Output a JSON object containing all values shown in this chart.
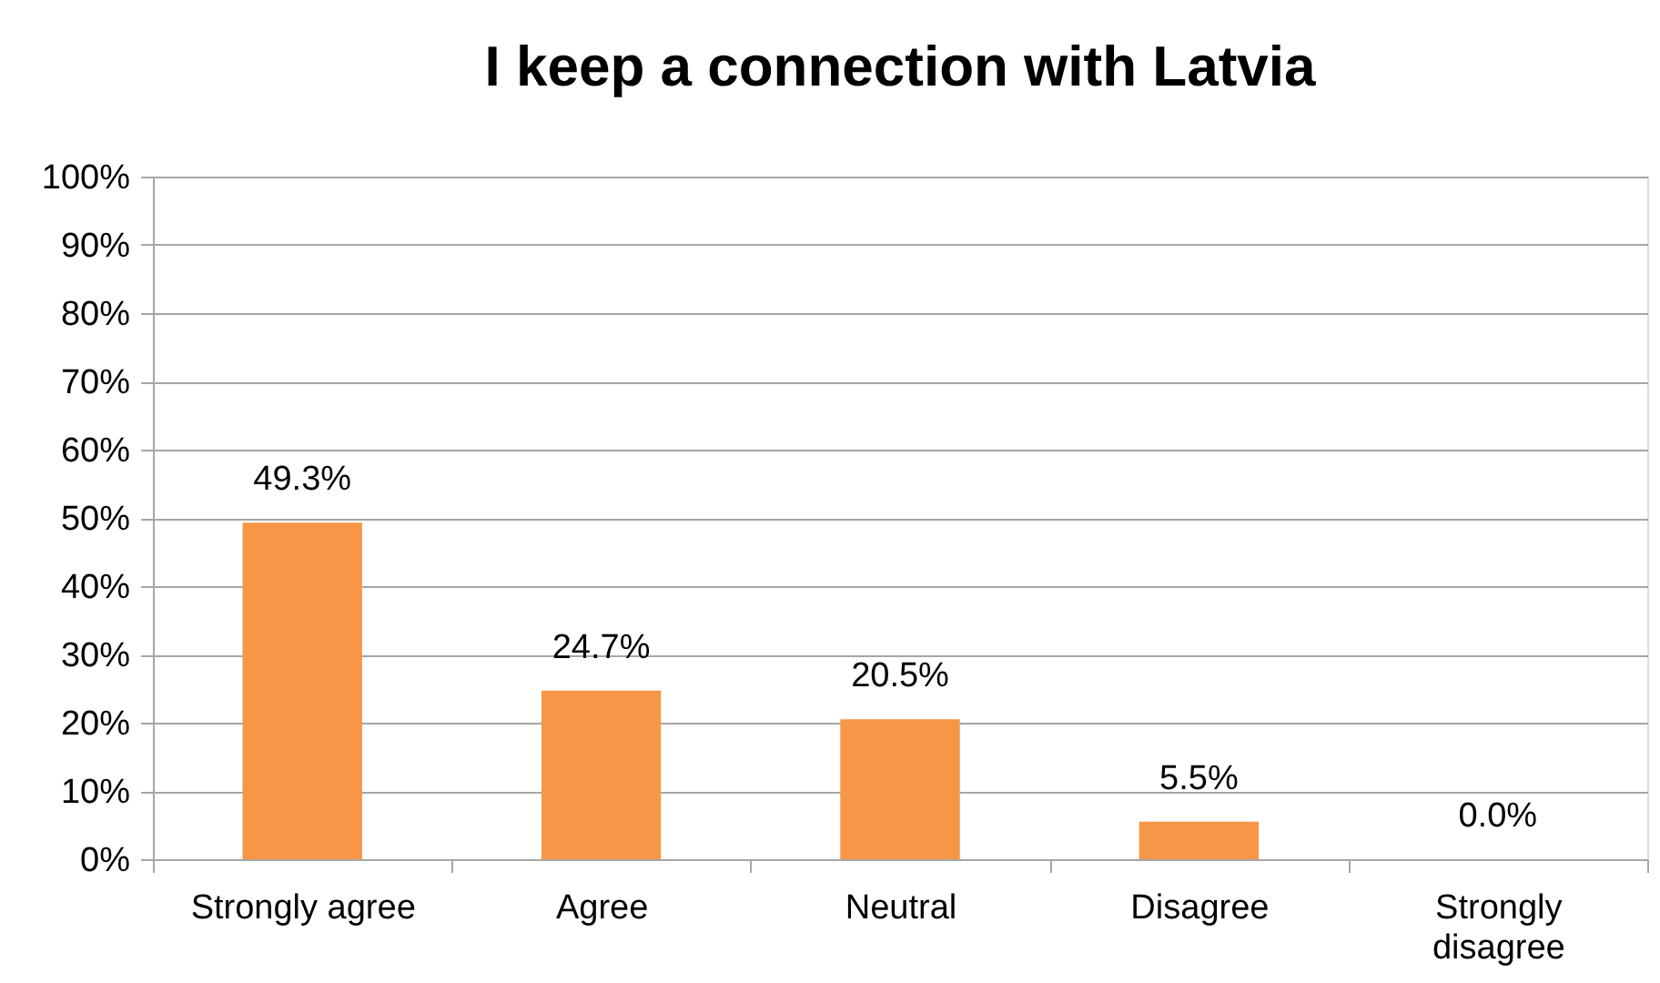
{
  "chart_data": {
    "type": "bar",
    "title": "I keep a connection with Latvia",
    "categories": [
      "Strongly agree",
      "Agree",
      "Neutral",
      "Disagree",
      "Strongly disagree"
    ],
    "values": [
      49.3,
      24.7,
      20.5,
      5.5,
      0.0
    ],
    "color": "#f79646",
    "value_labels": [
      "49.3%",
      "24.7%",
      "20.5%",
      "5.5%",
      "0.0%"
    ],
    "ylim": [
      0,
      100
    ],
    "yticks": [
      {
        "value": 0,
        "label": "0%"
      },
      {
        "value": 10,
        "label": "10%"
      },
      {
        "value": 20,
        "label": "20%"
      },
      {
        "value": 30,
        "label": "30%"
      },
      {
        "value": 40,
        "label": "40%"
      },
      {
        "value": 50,
        "label": "50%"
      },
      {
        "value": 60,
        "label": "60%"
      },
      {
        "value": 70,
        "label": "70%"
      },
      {
        "value": 80,
        "label": "80%"
      },
      {
        "value": 90,
        "label": "90%"
      },
      {
        "value": 100,
        "label": "100%"
      }
    ],
    "grid": "y"
  }
}
